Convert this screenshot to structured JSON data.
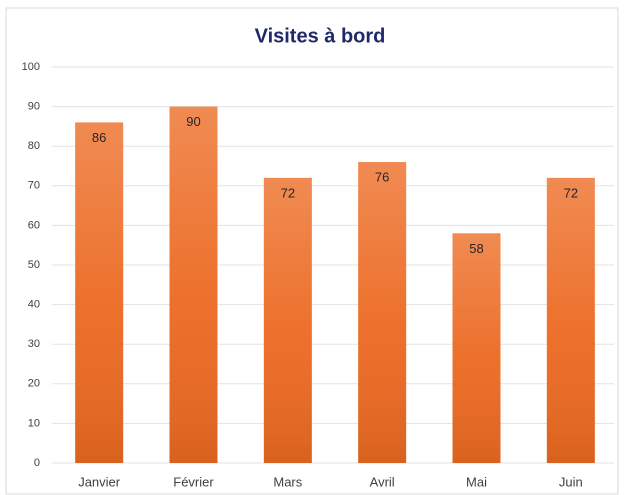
{
  "chart_data": {
    "type": "bar",
    "title": "Visites à bord",
    "categories": [
      "Janvier",
      "Février",
      "Mars",
      "Avril",
      "Mai",
      "Juin"
    ],
    "values": [
      86,
      90,
      72,
      76,
      58,
      72
    ],
    "color": "#ec6a22",
    "ylim": [
      0,
      100
    ],
    "yticks": [
      0,
      10,
      20,
      30,
      40,
      50,
      60,
      70,
      80,
      90,
      100
    ],
    "grid": true
  }
}
